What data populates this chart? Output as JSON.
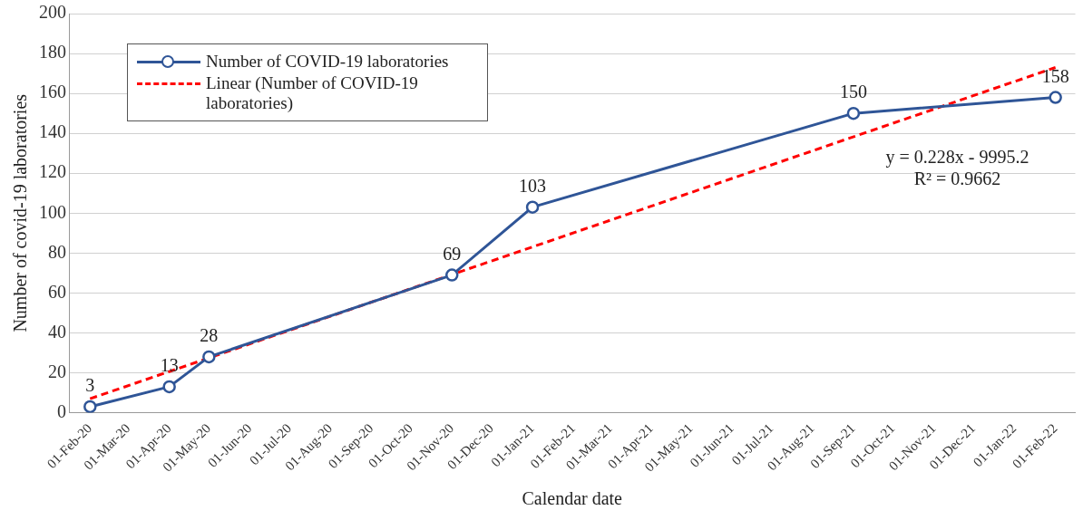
{
  "chart_data": {
    "type": "line",
    "xlabel": "Calendar date",
    "ylabel": "Number of covid-19 laboratories",
    "x": [
      "2020-02",
      "2020-04",
      "2020-05",
      "2020-11",
      "2021-01",
      "2021-09",
      "2022-02"
    ],
    "series": [
      {
        "name": "Number of COVID-19 laboratories",
        "color": "#2f5597",
        "values": [
          3,
          13,
          28,
          69,
          103,
          150,
          158
        ],
        "value_labels": [
          "3",
          "13",
          "28",
          "69",
          "103",
          "150",
          "158"
        ]
      },
      {
        "name": "Linear (Number of COVID-19 laboratories)",
        "color": "#ff0000",
        "x": [
          "2020-02",
          "2022-02"
        ],
        "values": [
          7,
          173
        ],
        "marker": "none",
        "line_style": "dashed"
      }
    ],
    "xlim": [
      "2020-01-16",
      "2022-02-16"
    ],
    "xticks": [
      {
        "value": "2020-02",
        "label": "01-Feb-20"
      },
      {
        "value": "2020-03",
        "label": "01-Mar-20"
      },
      {
        "value": "2020-04",
        "label": "01-Apr-20"
      },
      {
        "value": "2020-05",
        "label": "01-May-20"
      },
      {
        "value": "2020-06",
        "label": "01-Jun-20"
      },
      {
        "value": "2020-07",
        "label": "01-Jul-20"
      },
      {
        "value": "2020-08",
        "label": "01-Aug-20"
      },
      {
        "value": "2020-09",
        "label": "01-Sep-20"
      },
      {
        "value": "2020-10",
        "label": "01-Oct-20"
      },
      {
        "value": "2020-11",
        "label": "01-Nov-20"
      },
      {
        "value": "2020-12",
        "label": "01-Dec-20"
      },
      {
        "value": "2021-01",
        "label": "01-Jan-21"
      },
      {
        "value": "2021-02",
        "label": "01-Feb-21"
      },
      {
        "value": "2021-03",
        "label": "01-Mar-21"
      },
      {
        "value": "2021-04",
        "label": "01-Apr-21"
      },
      {
        "value": "2021-05",
        "label": "01-May-21"
      },
      {
        "value": "2021-06",
        "label": "01-Jun-21"
      },
      {
        "value": "2021-07",
        "label": "01-Jul-21"
      },
      {
        "value": "2021-08",
        "label": "01-Aug-21"
      },
      {
        "value": "2021-09",
        "label": "01-Sep-21"
      },
      {
        "value": "2021-10",
        "label": "01-Oct-21"
      },
      {
        "value": "2021-11",
        "label": "01-Nov-21"
      },
      {
        "value": "2021-12",
        "label": "01-Dec-21"
      },
      {
        "value": "2022-01",
        "label": "01-Jan-22"
      },
      {
        "value": "2022-02",
        "label": "01-Feb-22"
      }
    ],
    "ylim": [
      0,
      200
    ],
    "yticks": [
      0,
      20,
      40,
      60,
      80,
      100,
      120,
      140,
      160,
      180,
      200
    ],
    "grid": "y",
    "legend": "top left",
    "marker": "circle",
    "annotations": [
      "y = 0.228x - 9995.2",
      "R² = 0.9662"
    ]
  }
}
